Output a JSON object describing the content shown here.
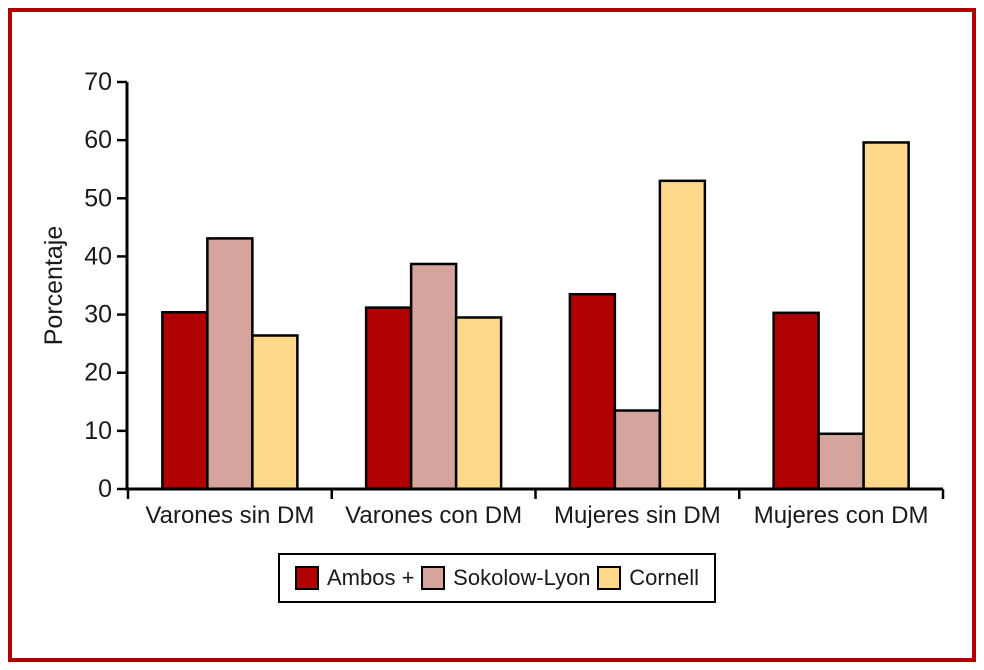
{
  "figure": {
    "background": "#ffffff",
    "border_color": "#b00000"
  },
  "chart_data": {
    "type": "bar",
    "title": "",
    "xlabel": "",
    "ylabel": "Porcentaje",
    "ylim": [
      0,
      70
    ],
    "yticks": [
      0,
      10,
      20,
      30,
      40,
      50,
      60,
      70
    ],
    "grid": false,
    "legend_position": "bottom",
    "bar_outline_color": "#000000",
    "axis_color": "#000000",
    "categories": [
      "Varones sin DM",
      "Varones con DM",
      "Mujeres sin DM",
      "Mujeres con DM"
    ],
    "series": [
      {
        "name": "Ambos +",
        "color": "#b00000",
        "values": [
          30.4,
          31.2,
          33.5,
          30.3
        ]
      },
      {
        "name": "Sokolow-Lyon",
        "color": "#d5a59d",
        "values": [
          43.1,
          38.7,
          13.5,
          9.5
        ]
      },
      {
        "name": "Cornell",
        "color": "#ffd98a",
        "values": [
          26.4,
          29.5,
          53.0,
          59.6
        ]
      }
    ]
  }
}
